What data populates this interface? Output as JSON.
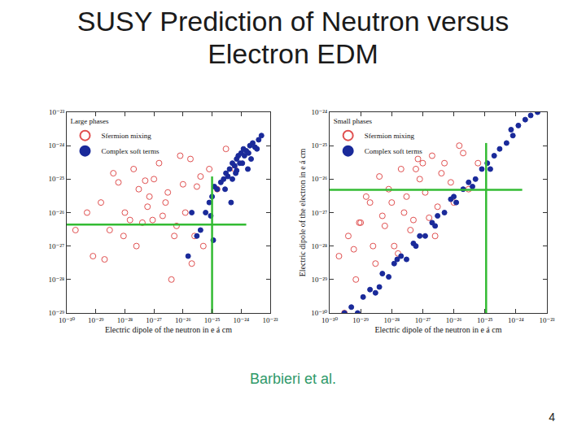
{
  "title": [
    "SUSY Prediction of Neutron versus",
    "Electron EDM"
  ],
  "source": "Barbieri et al.",
  "page_number": 4,
  "chart_data": [
    {
      "type": "scatter",
      "log": true,
      "grid": false,
      "legend": "upper left",
      "legend_title": "Large phases",
      "xlabel": "Electric dipole of the neutron in e á cm",
      "xlim": [
        1e-30,
        1e-23
      ],
      "ylim": [
        1e-29,
        1e-23
      ],
      "xticks": [
        {
          "value": 1e-30,
          "label": "10⁻³⁰"
        },
        {
          "value": 1e-29,
          "label": "10⁻²⁹"
        },
        {
          "value": 1e-28,
          "label": "10⁻²⁸"
        },
        {
          "value": 1e-27,
          "label": "10⁻²⁷"
        },
        {
          "value": 1e-26,
          "label": "10⁻²⁶"
        },
        {
          "value": 1e-25,
          "label": "10⁻²⁵"
        },
        {
          "value": 1e-24,
          "label": "10⁻²⁴"
        },
        {
          "value": 1e-23,
          "label": "10⁻²³"
        }
      ],
      "yticks": [
        {
          "value": 1e-29,
          "label": "10⁻²⁹"
        },
        {
          "value": 1e-28,
          "label": "10⁻²⁸"
        },
        {
          "value": 1e-27,
          "label": "10⁻²⁷"
        },
        {
          "value": 1e-26,
          "label": "10⁻²⁶"
        },
        {
          "value": 1e-25,
          "label": "10⁻²⁵"
        },
        {
          "value": 1e-24,
          "label": "10⁻²⁴"
        },
        {
          "value": 1e-23,
          "label": "10⁻²³"
        }
      ],
      "series": [
        {
          "name": "Sfermion mixing",
          "color": "#e05050",
          "marker": "open-circle",
          "x": [
            2e-30,
            5e-30,
            8e-30,
            1.5e-29,
            3e-29,
            6e-29,
            1e-28,
            2e-28,
            4e-28,
            7e-28,
            1e-27,
            2e-27,
            3e-27,
            5e-27,
            8e-27,
            1.2e-26,
            2e-26,
            3e-26,
            5e-26,
            8e-26,
            1.5e-25,
            3e-25,
            6e-25,
            2e-29,
            4e-29,
            1.5e-28,
            3e-28,
            6e-28,
            1.5e-27,
            4e-27,
            1e-26,
            2.5e-26,
            4e-26,
            9e-29,
            2.5e-28,
            5e-28,
            9e-28,
            2.5e-27,
            6e-27,
            1.8e-26
          ],
          "y": [
            3e-27,
            1e-26,
            5e-28,
            2e-26,
            3e-27,
            8e-26,
            1e-26,
            2e-25,
            5e-27,
            3e-26,
            1e-25,
            8e-27,
            4e-26,
            2e-27,
            5e-25,
            1e-26,
            3e-28,
            6e-26,
            1e-27,
            2e-25,
            5e-26,
            8e-25,
            2e-25,
            4e-28,
            1.5e-25,
            6e-27,
            5e-26,
            1.5e-26,
            3e-25,
            1e-28,
            7e-26,
            2e-27,
            1.2e-25,
            2e-27,
            1e-27,
            9e-26,
            6e-27,
            2e-26,
            4e-27,
            4e-25
          ]
        },
        {
          "name": "Complex soft terms",
          "color": "#1a2a9a",
          "marker": "circle",
          "x": [
            2e-25,
            3e-25,
            4e-25,
            5e-25,
            6e-25,
            8e-25,
            1e-24,
            1.2e-24,
            1.5e-24,
            2e-24,
            2.5e-24,
            3e-24,
            4e-24,
            5e-24,
            1.5e-25,
            2.5e-25,
            3.5e-25,
            7e-25,
            9e-25,
            1.3e-24,
            1.8e-24,
            2.2e-24,
            3.5e-24,
            1e-25,
            1.2e-25,
            6e-26,
            8e-26,
            5e-25,
            7e-25,
            1.1e-24,
            3e-26,
            2e-26,
            1.5e-26,
            4e-26,
            1.1e-25,
            9e-26,
            2.8e-25,
            4.5e-25,
            6.5e-25,
            1.7e-24
          ],
          "y": [
            8e-26,
            1.5e-25,
            2e-25,
            3e-25,
            2.5e-25,
            5e-25,
            6e-25,
            8e-25,
            7e-25,
            1e-24,
            1.2e-24,
            9e-25,
            1.5e-24,
            2e-24,
            5e-26,
            1e-25,
            1.2e-25,
            4e-25,
            3e-25,
            5e-25,
            6e-25,
            4e-25,
            8e-25,
            3e-26,
            6e-26,
            1e-26,
            2e-26,
            1e-25,
            1.8e-25,
            3e-25,
            2e-27,
            1e-26,
            5e-28,
            3e-27,
            1.5e-27,
            8e-27,
            5e-26,
            2e-26,
            1.5e-25,
            2e-25
          ]
        }
      ],
      "reference_lines": [
        {
          "color": "#33bb33",
          "x": [
            1e-30,
            1.5e-24
          ],
          "y": [
            4.4e-27,
            4.4e-27
          ]
        },
        {
          "color": "#33bb33",
          "x": [
            1e-25,
            1e-25
          ],
          "y": [
            1e-29,
            1.2e-25
          ]
        }
      ]
    },
    {
      "type": "scatter",
      "log": true,
      "grid": false,
      "legend": "upper left",
      "legend_title": "Small phases",
      "xlabel": "Electric dipole of the neutron in e á cm",
      "ylabel": "Electric dipole of the electron in e á cm",
      "xlim": [
        1e-30,
        1e-23
      ],
      "ylim": [
        1e-30,
        1e-24
      ],
      "xticks": [
        {
          "value": 1e-30,
          "label": "10⁻³⁰"
        },
        {
          "value": 1e-29,
          "label": "10⁻²⁹"
        },
        {
          "value": 1e-28,
          "label": "10⁻²⁸"
        },
        {
          "value": 1e-27,
          "label": "10⁻²⁷"
        },
        {
          "value": 1e-26,
          "label": "10⁻²⁶"
        },
        {
          "value": 1e-25,
          "label": "10⁻²⁵"
        },
        {
          "value": 1e-24,
          "label": "10⁻²⁴"
        },
        {
          "value": 1e-23,
          "label": "10⁻²³"
        }
      ],
      "yticks": [
        {
          "value": 1e-30,
          "label": "10⁻³⁰"
        },
        {
          "value": 1e-29,
          "label": "10⁻²⁹"
        },
        {
          "value": 1e-28,
          "label": "10⁻²⁸"
        },
        {
          "value": 1e-27,
          "label": "10⁻²⁷"
        },
        {
          "value": 1e-26,
          "label": "10⁻²⁶"
        },
        {
          "value": 1e-25,
          "label": "10⁻²⁵"
        },
        {
          "value": 1e-24,
          "label": "10⁻²⁴"
        }
      ],
      "series": [
        {
          "name": "Sfermion mixing",
          "color": "#e05050",
          "marker": "open-circle",
          "x": [
            2e-30,
            4e-30,
            7e-30,
            1e-29,
            2e-29,
            3e-29,
            5e-29,
            8e-29,
            1.2e-28,
            2e-28,
            3e-28,
            5e-28,
            8e-28,
            1.2e-27,
            2e-27,
            3e-27,
            5e-27,
            8e-27,
            1.5e-26,
            3e-26,
            3e-30,
            6e-30,
            1.5e-29,
            2.5e-29,
            4e-29,
            1e-28,
            1.6e-28,
            4e-28,
            6e-28,
            1e-27,
            1.6e-27,
            4e-27,
            1e-26,
            2e-26,
            6e-26,
            9e-30,
            6e-29,
            2.5e-28,
            7e-28,
            2.5e-27
          ],
          "y": [
            5e-29,
            2e-28,
            1e-29,
            5e-28,
            2e-27,
            3e-29,
            8e-28,
            5e-27,
            1e-28,
            2e-26,
            3e-27,
            6e-28,
            1e-26,
            4e-27,
            5e-26,
            1.5e-27,
            3e-26,
            8e-27,
            1e-25,
            5e-27,
            1e-30,
            8e-29,
            3e-27,
            1e-28,
            1.2e-26,
            2e-27,
            6e-29,
            3e-28,
            2e-26,
            3e-26,
            7e-28,
            1.5e-26,
            2e-27,
            6e-26,
            3e-26,
            5e-28,
            4e-28,
            1e-27,
            4e-26,
            2e-28
          ]
        },
        {
          "name": "Complex soft terms",
          "color": "#1a2a9a",
          "marker": "circle",
          "x": [
            3e-30,
            5e-30,
            8e-30,
            1.2e-29,
            2e-29,
            3e-29,
            5e-29,
            8e-29,
            1.2e-28,
            2e-28,
            3e-28,
            5e-28,
            8e-28,
            1.2e-27,
            2e-27,
            3e-27,
            5e-27,
            8e-27,
            1.2e-26,
            2e-26,
            3e-26,
            5e-26,
            8e-26,
            1.2e-25,
            2e-25,
            3e-25,
            5e-25,
            8e-25,
            1.2e-24,
            2e-24,
            3e-24,
            5e-24,
            4e-29,
            1.5e-28,
            6e-28,
            2.5e-27,
            1e-26,
            4e-26,
            1.5e-25,
            7e-25
          ],
          "y": [
            1e-30,
            1.5e-30,
            1e-30,
            3e-30,
            5e-30,
            4e-30,
            1.5e-29,
            1.2e-29,
            3e-29,
            5e-29,
            4e-29,
            1.2e-28,
            2e-28,
            2e-28,
            5e-28,
            8e-28,
            1e-27,
            2.5e-27,
            2e-27,
            5e-27,
            8e-27,
            1e-26,
            2e-26,
            3e-26,
            5e-26,
            8e-26,
            1.2e-25,
            2e-25,
            4e-25,
            6e-25,
            8e-25,
            1e-24,
            6e-30,
            4e-29,
            1e-28,
            4e-28,
            3e-27,
            6e-27,
            2e-26,
            3e-25
          ]
        }
      ],
      "reference_lines": [
        {
          "color": "#33bb33",
          "x": [
            1e-30,
            1.6e-24
          ],
          "y": [
            4.8e-27,
            4.8e-27
          ]
        },
        {
          "color": "#33bb33",
          "x": [
            1.1e-25,
            1.1e-25
          ],
          "y": [
            1e-30,
            1.2e-25
          ]
        }
      ]
    }
  ]
}
